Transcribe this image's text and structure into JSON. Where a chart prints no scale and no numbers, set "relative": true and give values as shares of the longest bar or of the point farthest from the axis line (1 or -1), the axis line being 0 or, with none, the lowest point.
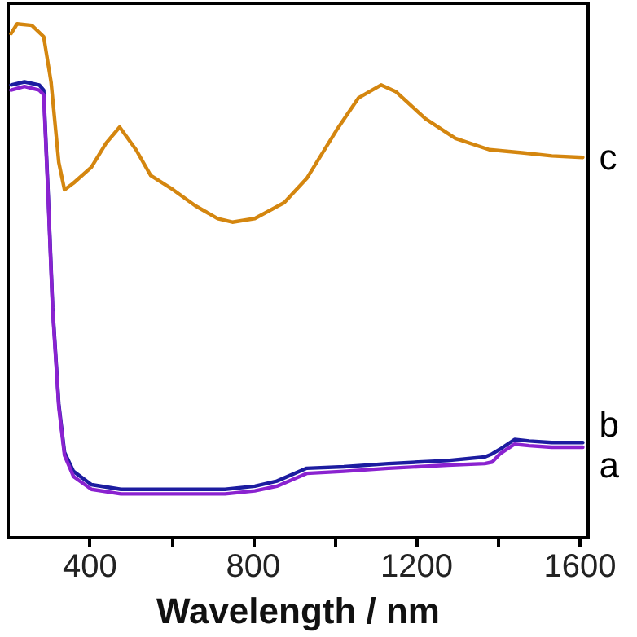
{
  "chart_data": {
    "type": "line",
    "xlabel": "Wavelength / nm",
    "relative": true,
    "xlim": [
      200,
      1620
    ],
    "xticks": [
      400,
      {
        "value": 600,
        "label": null
      },
      800,
      {
        "value": 1000,
        "label": null
      },
      1200,
      {
        "value": 1400,
        "label": null
      },
      1600
    ],
    "grid": false,
    "legend": false,
    "marker": "none",
    "line_style": "solid",
    "series": [
      {
        "name": "c",
        "color": "#d4860f",
        "x": [
          207,
          222,
          258,
          287,
          305,
          324,
          338,
          360,
          404,
          440,
          473,
          513,
          549,
          604,
          658,
          713,
          749,
          804,
          876,
          931,
          1004,
          1058,
          1113,
          1149,
          1222,
          1295,
          1378,
          1458,
          1531,
          1607
        ],
        "values": [
          0.981,
          1.0,
          0.997,
          0.975,
          0.887,
          0.73,
          0.677,
          0.69,
          0.721,
          0.768,
          0.799,
          0.755,
          0.705,
          0.677,
          0.646,
          0.621,
          0.614,
          0.621,
          0.652,
          0.699,
          0.793,
          0.856,
          0.881,
          0.868,
          0.815,
          0.777,
          0.755,
          0.749,
          0.743,
          0.74
        ]
      },
      {
        "name": "b",
        "color": "#1c1ca0",
        "x": [
          207,
          240,
          276,
          287,
          298,
          309,
          324,
          338,
          360,
          404,
          476,
          731,
          804,
          858,
          931,
          1022,
          1131,
          1276,
          1367,
          1385,
          1404,
          1440,
          1476,
          1531,
          1607
        ],
        "values": [
          0.881,
          0.887,
          0.881,
          0.871,
          0.668,
          0.448,
          0.26,
          0.166,
          0.129,
          0.103,
          0.094,
          0.094,
          0.1,
          0.11,
          0.135,
          0.138,
          0.144,
          0.15,
          0.157,
          0.163,
          0.172,
          0.191,
          0.188,
          0.185,
          0.185
        ]
      },
      {
        "name": "a",
        "color": "#8a22d0",
        "x": [
          207,
          240,
          276,
          287,
          298,
          309,
          324,
          338,
          360,
          404,
          476,
          731,
          804,
          858,
          931,
          1022,
          1131,
          1276,
          1367,
          1385,
          1404,
          1440,
          1476,
          1531,
          1607
        ],
        "values": [
          0.871,
          0.878,
          0.871,
          0.862,
          0.661,
          0.442,
          0.254,
          0.16,
          0.119,
          0.094,
          0.085,
          0.085,
          0.091,
          0.1,
          0.125,
          0.129,
          0.135,
          0.141,
          0.144,
          0.147,
          0.163,
          0.182,
          0.179,
          0.176,
          0.176
        ]
      }
    ]
  }
}
